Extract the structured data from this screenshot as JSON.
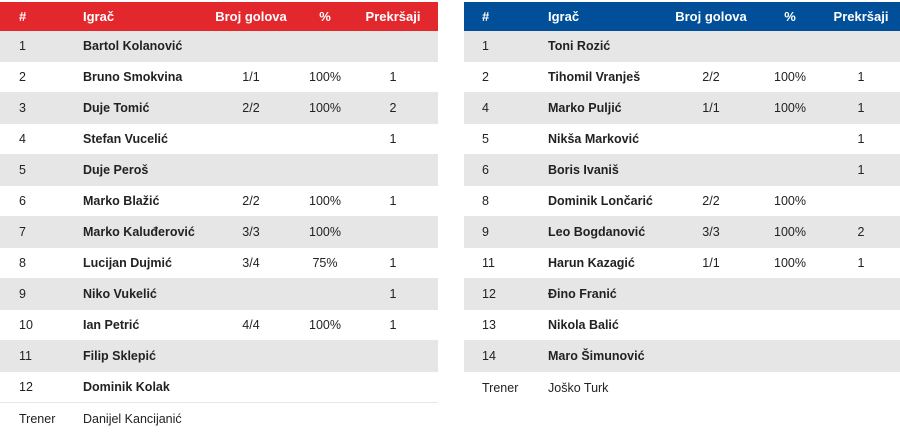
{
  "headers": {
    "num": "#",
    "player": "Igrač",
    "goals": "Broj golova",
    "pct": "%",
    "fouls": "Prekršaji"
  },
  "team_left": {
    "color": "#e2272d",
    "rows": [
      {
        "num": "1",
        "name": "Bartol Kolanović",
        "goals": "",
        "pct": "",
        "fouls": ""
      },
      {
        "num": "2",
        "name": "Bruno Smokvina",
        "goals": "1/1",
        "pct": "100%",
        "fouls": "1"
      },
      {
        "num": "3",
        "name": "Duje Tomić",
        "goals": "2/2",
        "pct": "100%",
        "fouls": "2"
      },
      {
        "num": "4",
        "name": "Stefan Vucelić",
        "goals": "",
        "pct": "",
        "fouls": "1"
      },
      {
        "num": "5",
        "name": "Duje Peroš",
        "goals": "",
        "pct": "",
        "fouls": ""
      },
      {
        "num": "6",
        "name": "Marko Blažić",
        "goals": "2/2",
        "pct": "100%",
        "fouls": "1"
      },
      {
        "num": "7",
        "name": "Marko Kaluđerović",
        "goals": "3/3",
        "pct": "100%",
        "fouls": ""
      },
      {
        "num": "8",
        "name": "Lucijan Dujmić",
        "goals": "3/4",
        "pct": "75%",
        "fouls": "1"
      },
      {
        "num": "9",
        "name": "Niko Vukelić",
        "goals": "",
        "pct": "",
        "fouls": "1"
      },
      {
        "num": "10",
        "name": "Ian Petrić",
        "goals": "4/4",
        "pct": "100%",
        "fouls": "1"
      },
      {
        "num": "11",
        "name": "Filip Sklepić",
        "goals": "",
        "pct": "",
        "fouls": ""
      },
      {
        "num": "12",
        "name": "Dominik Kolak",
        "goals": "",
        "pct": "",
        "fouls": ""
      }
    ],
    "coach_label": "Trener",
    "coach_name": "Danijel Kancijanić"
  },
  "team_right": {
    "color": "#004f98",
    "rows": [
      {
        "num": "1",
        "name": "Toni Rozić",
        "goals": "",
        "pct": "",
        "fouls": ""
      },
      {
        "num": "2",
        "name": "Tihomil Vranješ",
        "goals": "2/2",
        "pct": "100%",
        "fouls": "1"
      },
      {
        "num": "4",
        "name": "Marko Puljić",
        "goals": "1/1",
        "pct": "100%",
        "fouls": "1"
      },
      {
        "num": "5",
        "name": "Nikša Marković",
        "goals": "",
        "pct": "",
        "fouls": "1"
      },
      {
        "num": "6",
        "name": "Boris Ivaniš",
        "goals": "",
        "pct": "",
        "fouls": "1"
      },
      {
        "num": "8",
        "name": "Dominik Lončarić",
        "goals": "2/2",
        "pct": "100%",
        "fouls": ""
      },
      {
        "num": "9",
        "name": "Leo Bogdanović",
        "goals": "3/3",
        "pct": "100%",
        "fouls": "2"
      },
      {
        "num": "11",
        "name": "Harun Kazagić",
        "goals": "1/1",
        "pct": "100%",
        "fouls": "1"
      },
      {
        "num": "12",
        "name": "Đino Franić",
        "goals": "",
        "pct": "",
        "fouls": ""
      },
      {
        "num": "13",
        "name": "Nikola Balić",
        "goals": "",
        "pct": "",
        "fouls": ""
      },
      {
        "num": "14",
        "name": "Maro Šimunović",
        "goals": "",
        "pct": "",
        "fouls": ""
      }
    ],
    "coach_label": "Trener",
    "coach_name": "Joško Turk"
  }
}
